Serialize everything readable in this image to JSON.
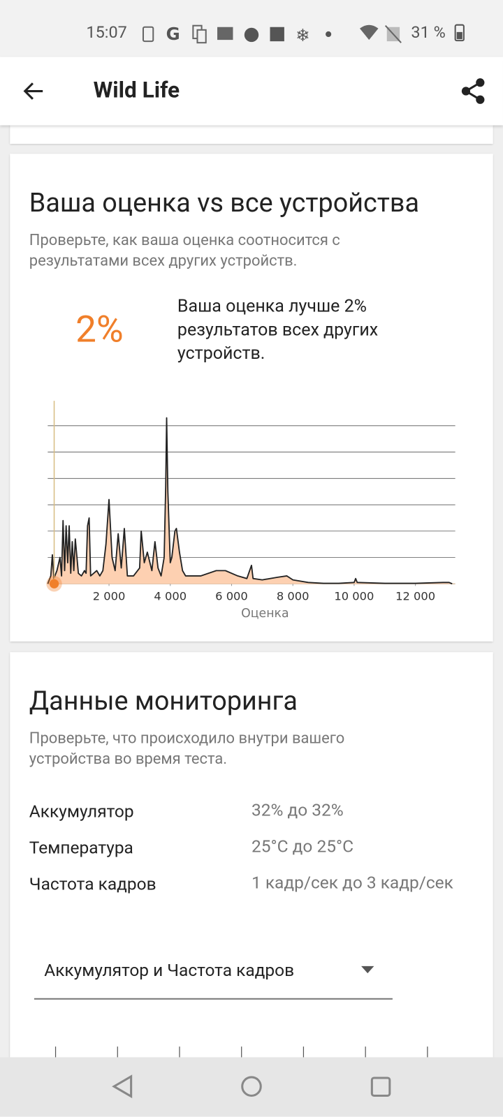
{
  "status_bar": {
    "time": "15:07",
    "battery": "31 %"
  },
  "app_bar": {
    "title": "Wild Life"
  },
  "comparison": {
    "title": "Ваша оценка vs все устройства",
    "description": "Проверьте, как ваша оценка соотносится с результатами всех других устройств.",
    "percentile": "2%",
    "summary": "Ваша оценка лучше 2% результатов всех других устройств."
  },
  "chart_data": {
    "type": "area",
    "x_label": "Оценка",
    "x": [
      0,
      100,
      150,
      200,
      300,
      400,
      450,
      500,
      550,
      600,
      650,
      700,
      750,
      800,
      850,
      900,
      1000,
      1100,
      1200,
      1250,
      1300,
      1350,
      1400,
      1500,
      1600,
      1700,
      1800,
      1900,
      2000,
      2100,
      2200,
      2300,
      2400,
      2500,
      2600,
      2800,
      3000,
      3050,
      3150,
      3250,
      3400,
      3500,
      3600,
      3700,
      3800,
      3850,
      3880,
      3920,
      4000,
      4050,
      4150,
      4200,
      4300,
      4400,
      4500,
      5000,
      5500,
      5800,
      6200,
      6500,
      6650,
      6700,
      7000,
      7500,
      7800,
      8000,
      8500,
      9000,
      9500,
      10000,
      10050,
      10100,
      11000,
      12000,
      12900,
      13100,
      13200
    ],
    "values": [
      0,
      0.3,
      1.1,
      0.2,
      0.5,
      1.0,
      0.3,
      2.4,
      0.5,
      2.2,
      0.8,
      2.2,
      0.4,
      1.6,
      0.5,
      1.7,
      0.4,
      0.3,
      0.5,
      0.4,
      2.2,
      2.5,
      0.3,
      0.4,
      0.5,
      0.3,
      0.5,
      1.5,
      3.2,
      1.0,
      0.5,
      1.9,
      0.6,
      2.1,
      0.3,
      0.3,
      0.6,
      2.0,
      0.8,
      1.2,
      0.5,
      1.6,
      0.6,
      0.3,
      1.0,
      3.7,
      6.3,
      3.5,
      0.8,
      1.0,
      2.0,
      2.1,
      1.2,
      0.5,
      0.3,
      0.3,
      0.5,
      0.5,
      0.3,
      0.2,
      0.7,
      0.2,
      0.15,
      0.25,
      0.3,
      0.15,
      0.05,
      0.02,
      0.02,
      0.05,
      0.2,
      0.05,
      0.02,
      0.02,
      0.05,
      0.05,
      0
    ],
    "color": "#fdd0b1",
    "line_color": "#222222",
    "your_score": 210,
    "marker_color": "#f07f2a",
    "xlim": [
      0,
      13300
    ],
    "ylim": [
      0,
      7
    ],
    "xticks": [
      {
        "value": 2000,
        "label": "2 000"
      },
      {
        "value": 4000,
        "label": "4 000"
      },
      {
        "value": 6000,
        "label": "6 000"
      },
      {
        "value": 8000,
        "label": "8 000"
      },
      {
        "value": 10000,
        "label": "10 000"
      },
      {
        "value": 12000,
        "label": "12 000"
      }
    ],
    "yticks": [
      1,
      2,
      3,
      4,
      5,
      6
    ],
    "grid": true
  },
  "monitoring": {
    "title": "Данные мониторинга",
    "description": "Проверьте, что происходило внутри вашего устройства во время теста.",
    "rows": [
      [
        "Аккумулятор",
        "32% до 32%"
      ],
      [
        "Температура",
        "25°C до 25°C"
      ],
      [
        "Частота кадров",
        "1 кадр/сек до 3 кадр/сек"
      ]
    ],
    "dropdown": "Аккумулятор и Частота кадров"
  }
}
